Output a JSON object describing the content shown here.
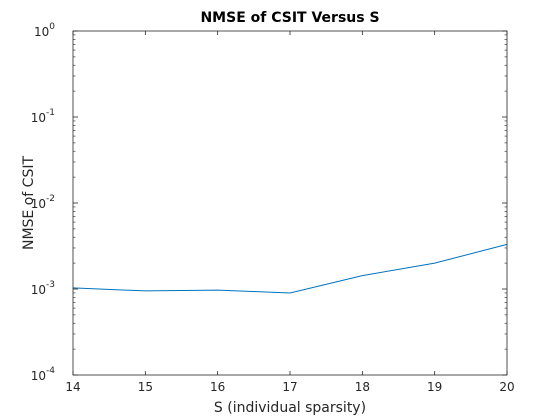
{
  "chart_data": {
    "type": "line",
    "title": "NMSE of CSIT Versus S",
    "xlabel": "S (individual sparsity)",
    "ylabel": "NMSE of CSIT",
    "xlim": [
      14,
      20
    ],
    "ylim": [
      0.0001,
      1
    ],
    "yscale": "log",
    "grid": false,
    "x_ticks": [
      "14",
      "15",
      "16",
      "17",
      "18",
      "19",
      "20"
    ],
    "y_ticks": [
      {
        "value": 0.0001,
        "base": "10",
        "exp": "-4"
      },
      {
        "value": 0.001,
        "base": "10",
        "exp": "-3"
      },
      {
        "value": 0.01,
        "base": "10",
        "exp": "-2"
      },
      {
        "value": 0.1,
        "base": "10",
        "exp": "-1"
      },
      {
        "value": 1,
        "base": "10",
        "exp": "0"
      }
    ],
    "series": [
      {
        "color": "#0072bd",
        "x": [
          14,
          15,
          16,
          17,
          18,
          19,
          20
        ],
        "y": [
          0.00103,
          0.00095,
          0.00097,
          0.0009,
          0.00143,
          0.002,
          0.0033
        ]
      }
    ]
  }
}
